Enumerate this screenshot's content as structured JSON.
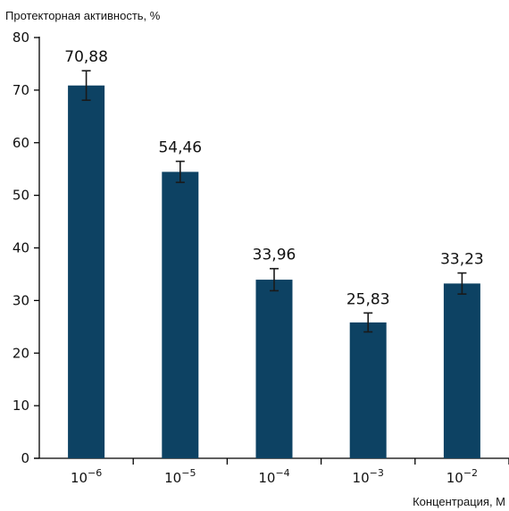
{
  "chart_data": {
    "type": "bar",
    "title": "",
    "ylabel": "Протекторная активность, %",
    "xlabel": "Концентрация, М",
    "categories": [
      {
        "base": "10",
        "exp": "−6"
      },
      {
        "base": "10",
        "exp": "−5"
      },
      {
        "base": "10",
        "exp": "−4"
      },
      {
        "base": "10",
        "exp": "−3"
      },
      {
        "base": "10",
        "exp": "−2"
      }
    ],
    "values": [
      70.88,
      54.46,
      33.96,
      25.83,
      33.23
    ],
    "value_labels": [
      "70,88",
      "54,46",
      "33,96",
      "25,83",
      "33,23"
    ],
    "error_bars": [
      2.8,
      2.0,
      2.1,
      1.8,
      2.0
    ],
    "ylim": [
      0,
      80
    ],
    "yticks": [
      0,
      10,
      20,
      30,
      40,
      50,
      60,
      70,
      80
    ],
    "grid": false,
    "bar_color": "#0d4263",
    "axis_color": "#000000"
  }
}
